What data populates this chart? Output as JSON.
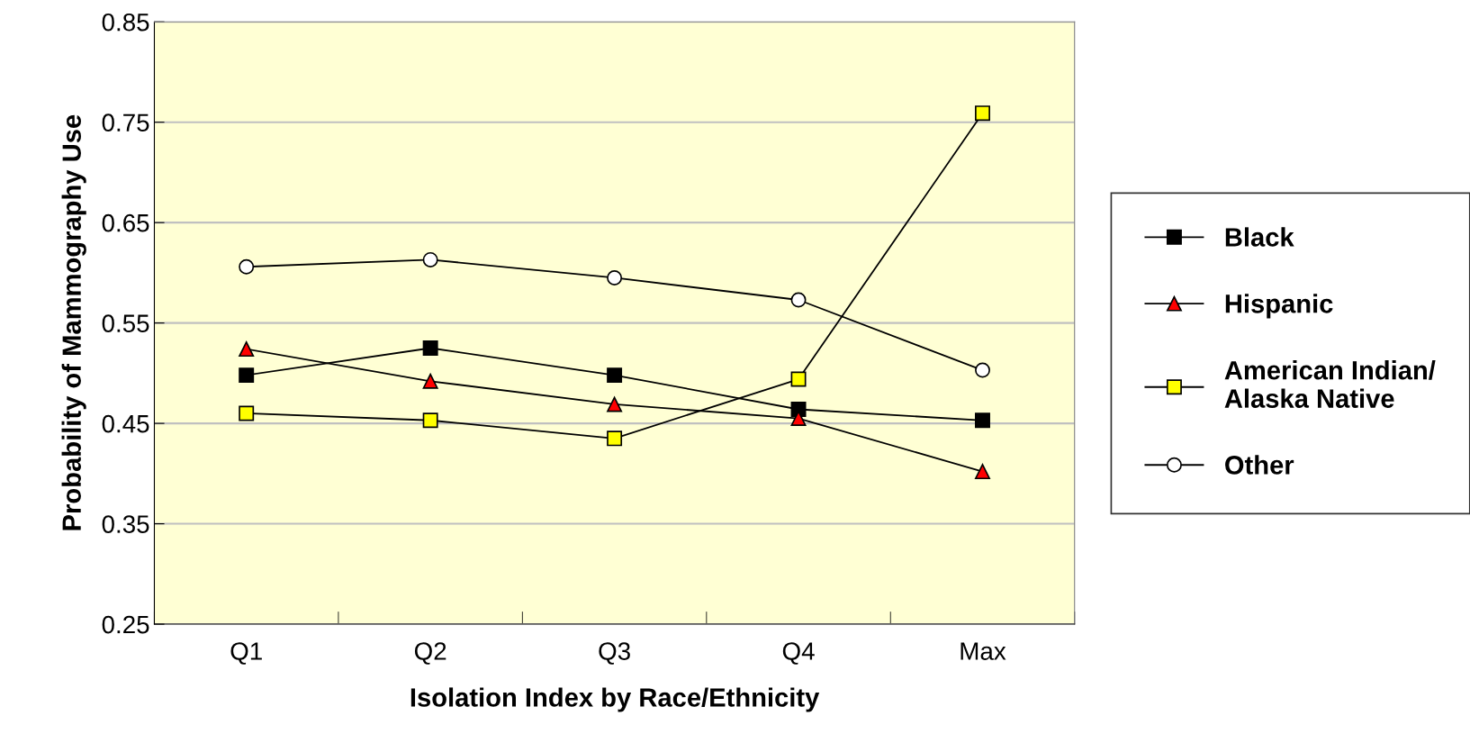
{
  "chart_data": {
    "type": "line",
    "xlabel": "Isolation Index by Race/Ethnicity",
    "ylabel": "Probability of Mammography Use",
    "categories": [
      "Q1",
      "Q2",
      "Q3",
      "Q4",
      "Max"
    ],
    "series": [
      {
        "name": "Black",
        "color": "#000000",
        "marker": "square",
        "values": [
          0.498,
          0.525,
          0.498,
          0.464,
          0.453
        ]
      },
      {
        "name": "Hispanic",
        "color": "#ff0000",
        "marker": "triangle",
        "values": [
          0.524,
          0.492,
          0.469,
          0.455,
          0.402
        ]
      },
      {
        "name": "American Indian/\nAlaska Native",
        "color": "#ffff00",
        "marker": "square",
        "values": [
          0.46,
          0.453,
          0.435,
          0.494,
          0.759
        ]
      },
      {
        "name": "Other",
        "color": "#ffffff",
        "marker": "circle",
        "values": [
          0.606,
          0.613,
          0.595,
          0.573,
          0.503
        ]
      }
    ],
    "ylim": [
      0.25,
      0.85
    ],
    "yticks": [
      {
        "value": 0.25,
        "label": "0.25"
      },
      {
        "value": 0.35,
        "label": "0.35"
      },
      {
        "value": 0.45,
        "label": "0.45"
      },
      {
        "value": 0.55,
        "label": "0.55"
      },
      {
        "value": 0.65,
        "label": "0.65"
      },
      {
        "value": 0.75,
        "label": "0.75"
      },
      {
        "value": 0.85,
        "label": "0.85"
      }
    ],
    "grid": "y",
    "legend": "right",
    "line_style": "solid"
  }
}
